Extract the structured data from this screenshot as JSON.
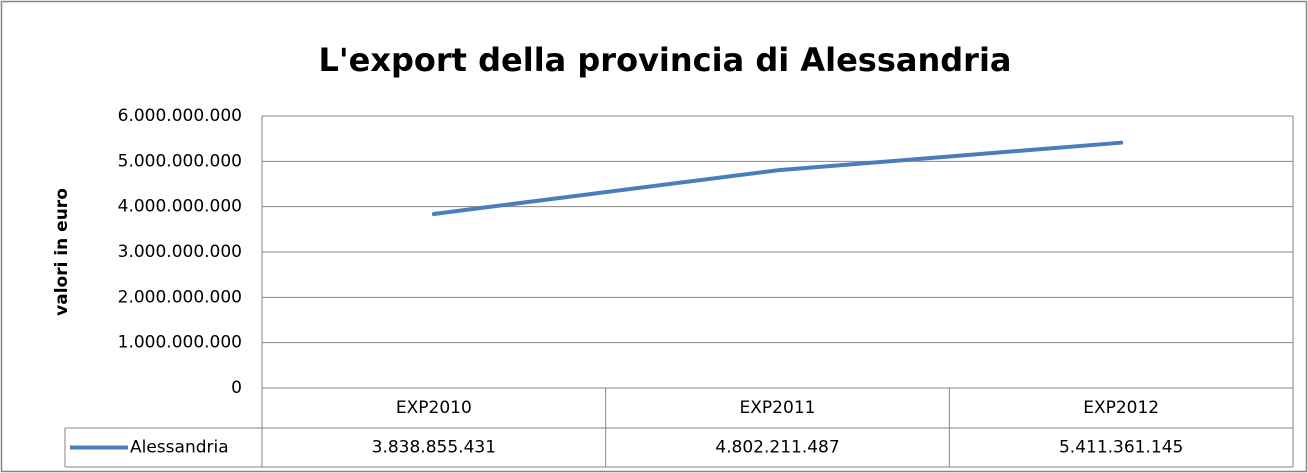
{
  "chart_data": {
    "type": "line",
    "title": "L'export della provincia di Alessandria",
    "y_label": "valori in euro",
    "categories": [
      "EXP2010",
      "EXP2011",
      "EXP2012"
    ],
    "series": [
      {
        "name": "Alessandria",
        "color": "#4a7ebb",
        "values": [
          3838855431,
          4802211487,
          5411361145
        ],
        "value_labels": [
          "3.838.855.431",
          "4.802.211.487",
          "5.411.361.145"
        ]
      }
    ],
    "ylim": [
      0,
      6000000000
    ],
    "yticks": [
      0,
      {
        "value": 1000000000,
        "label": "1.000.000.000"
      },
      {
        "value": 2000000000,
        "label": "2.000.000.000"
      },
      {
        "value": 3000000000,
        "label": "3.000.000.000"
      },
      {
        "value": 4000000000,
        "label": "4.000.000.000"
      },
      {
        "value": 5000000000,
        "label": "5.000.000.000"
      },
      {
        "value": 6000000000,
        "label": "6.000.000.000"
      }
    ],
    "grid": true,
    "data_table": true
  }
}
